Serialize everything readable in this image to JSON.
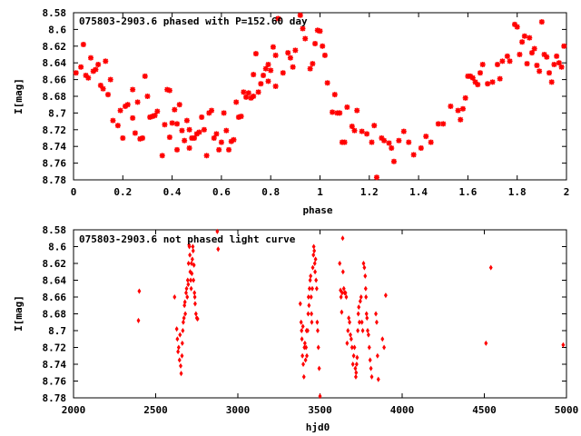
{
  "chart_data": [
    {
      "type": "scatter",
      "title": "075803-2903.6 phased with P=152.60 day",
      "xlabel": "phase",
      "ylabel": "I[mag]",
      "xlim": [
        0,
        2
      ],
      "ylim": [
        8.58,
        8.78
      ],
      "y_inverted": true,
      "grid": false,
      "xticks": [
        "0",
        "0.2",
        "0.4",
        "0.6",
        "0.8",
        "1",
        "1.2",
        "1.4",
        "1.6",
        "1.8",
        "2"
      ],
      "xtick_values": [
        0,
        0.2,
        0.4,
        0.6,
        0.8,
        1,
        1.2,
        1.4,
        1.6,
        1.8,
        2
      ],
      "yticks": [
        "8.58",
        "8.6",
        "8.62",
        "8.64",
        "8.66",
        "8.68",
        "8.7",
        "8.72",
        "8.74",
        "8.76",
        "8.78"
      ],
      "ytick_values": [
        8.58,
        8.6,
        8.62,
        8.64,
        8.66,
        8.68,
        8.7,
        8.72,
        8.74,
        8.76,
        8.78
      ],
      "marker": "star",
      "color": "#ff0000",
      "points": [
        [
          0.01,
          8.652
        ],
        [
          0.03,
          8.645
        ],
        [
          0.04,
          8.618
        ],
        [
          0.05,
          8.655
        ],
        [
          0.06,
          8.658
        ],
        [
          0.07,
          8.634
        ],
        [
          0.08,
          8.65
        ],
        [
          0.09,
          8.648
        ],
        [
          0.1,
          8.642
        ],
        [
          0.11,
          8.667
        ],
        [
          0.12,
          8.671
        ],
        [
          0.13,
          8.638
        ],
        [
          0.14,
          8.678
        ],
        [
          0.15,
          8.66
        ],
        [
          0.16,
          8.709
        ],
        [
          0.18,
          8.715
        ],
        [
          0.19,
          8.697
        ],
        [
          0.2,
          8.73
        ],
        [
          0.21,
          8.692
        ],
        [
          0.22,
          8.69
        ],
        [
          0.24,
          8.706
        ],
        [
          0.24,
          8.672
        ],
        [
          0.25,
          8.724
        ],
        [
          0.26,
          8.687
        ],
        [
          0.27,
          8.731
        ],
        [
          0.28,
          8.73
        ],
        [
          0.29,
          8.656
        ],
        [
          0.3,
          8.68
        ],
        [
          0.31,
          8.705
        ],
        [
          0.32,
          8.704
        ],
        [
          0.33,
          8.703
        ],
        [
          0.34,
          8.698
        ],
        [
          0.36,
          8.751
        ],
        [
          0.37,
          8.714
        ],
        [
          0.38,
          8.672
        ],
        [
          0.39,
          8.673
        ],
        [
          0.39,
          8.729
        ],
        [
          0.4,
          8.712
        ],
        [
          0.41,
          8.696
        ],
        [
          0.42,
          8.713
        ],
        [
          0.42,
          8.744
        ],
        [
          0.43,
          8.69
        ],
        [
          0.44,
          8.721
        ],
        [
          0.45,
          8.733
        ],
        [
          0.46,
          8.709
        ],
        [
          0.47,
          8.72
        ],
        [
          0.47,
          8.742
        ],
        [
          0.48,
          8.73
        ],
        [
          0.49,
          8.73
        ],
        [
          0.5,
          8.725
        ],
        [
          0.51,
          8.723
        ],
        [
          0.52,
          8.705
        ],
        [
          0.53,
          8.72
        ],
        [
          0.54,
          8.751
        ],
        [
          0.55,
          8.7
        ],
        [
          0.56,
          8.697
        ],
        [
          0.57,
          8.73
        ],
        [
          0.58,
          8.725
        ],
        [
          0.59,
          8.744
        ],
        [
          0.6,
          8.735
        ],
        [
          0.61,
          8.7
        ],
        [
          0.62,
          8.721
        ],
        [
          0.63,
          8.744
        ],
        [
          0.64,
          8.734
        ],
        [
          0.65,
          8.732
        ],
        [
          0.66,
          8.687
        ],
        [
          0.67,
          8.705
        ],
        [
          0.68,
          8.704
        ],
        [
          0.69,
          8.675
        ],
        [
          0.7,
          8.681
        ],
        [
          0.71,
          8.676
        ],
        [
          0.72,
          8.682
        ],
        [
          0.73,
          8.654
        ],
        [
          0.73,
          8.68
        ],
        [
          0.74,
          8.629
        ],
        [
          0.75,
          8.675
        ],
        [
          0.76,
          8.665
        ],
        [
          0.77,
          8.655
        ],
        [
          0.78,
          8.647
        ],
        [
          0.79,
          8.642
        ],
        [
          0.79,
          8.662
        ],
        [
          0.8,
          8.649
        ],
        [
          0.81,
          8.621
        ],
        [
          0.82,
          8.631
        ],
        [
          0.82,
          8.668
        ],
        [
          0.83,
          8.587
        ],
        [
          0.85,
          8.652
        ],
        [
          0.87,
          8.628
        ],
        [
          0.88,
          8.634
        ],
        [
          0.89,
          8.645
        ],
        [
          0.9,
          8.625
        ],
        [
          0.92,
          8.583
        ],
        [
          0.93,
          8.599
        ],
        [
          0.94,
          8.611
        ],
        [
          0.96,
          8.647
        ],
        [
          0.97,
          8.641
        ],
        [
          0.98,
          8.617
        ],
        [
          0.99,
          8.601
        ],
        [
          1.0,
          8.602
        ],
        [
          1.01,
          8.62
        ],
        [
          1.02,
          8.631
        ],
        [
          1.03,
          8.664
        ],
        [
          1.05,
          8.699
        ],
        [
          1.06,
          8.678
        ],
        [
          1.07,
          8.7
        ],
        [
          1.08,
          8.7
        ],
        [
          1.09,
          8.735
        ],
        [
          1.1,
          8.735
        ],
        [
          1.11,
          8.693
        ],
        [
          1.13,
          8.716
        ],
        [
          1.14,
          8.721
        ],
        [
          1.15,
          8.697
        ],
        [
          1.17,
          8.722
        ],
        [
          1.19,
          8.725
        ],
        [
          1.21,
          8.735
        ],
        [
          1.22,
          8.715
        ],
        [
          1.23,
          8.777
        ],
        [
          1.25,
          8.73
        ],
        [
          1.26,
          8.733
        ],
        [
          1.28,
          8.736
        ],
        [
          1.29,
          8.742
        ],
        [
          1.3,
          8.758
        ],
        [
          1.32,
          8.733
        ],
        [
          1.34,
          8.722
        ],
        [
          1.36,
          8.735
        ],
        [
          1.38,
          8.75
        ],
        [
          1.41,
          8.742
        ],
        [
          1.43,
          8.728
        ],
        [
          1.45,
          8.735
        ],
        [
          1.48,
          8.713
        ],
        [
          1.5,
          8.713
        ],
        [
          1.53,
          8.692
        ],
        [
          1.56,
          8.697
        ],
        [
          1.57,
          8.708
        ],
        [
          1.58,
          8.695
        ],
        [
          1.59,
          8.682
        ],
        [
          1.6,
          8.656
        ],
        [
          1.61,
          8.656
        ],
        [
          1.62,
          8.658
        ],
        [
          1.63,
          8.663
        ],
        [
          1.64,
          8.666
        ],
        [
          1.65,
          8.652
        ],
        [
          1.66,
          8.642
        ],
        [
          1.68,
          8.665
        ],
        [
          1.7,
          8.663
        ],
        [
          1.72,
          8.642
        ],
        [
          1.73,
          8.659
        ],
        [
          1.74,
          8.638
        ],
        [
          1.76,
          8.632
        ],
        [
          1.77,
          8.638
        ],
        [
          1.79,
          8.594
        ],
        [
          1.8,
          8.597
        ],
        [
          1.81,
          8.63
        ],
        [
          1.82,
          8.615
        ],
        [
          1.83,
          8.608
        ],
        [
          1.84,
          8.641
        ],
        [
          1.85,
          8.61
        ],
        [
          1.86,
          8.628
        ],
        [
          1.87,
          8.623
        ],
        [
          1.88,
          8.643
        ],
        [
          1.89,
          8.65
        ],
        [
          1.9,
          8.591
        ],
        [
          1.91,
          8.63
        ],
        [
          1.92,
          8.633
        ],
        [
          1.93,
          8.652
        ],
        [
          1.94,
          8.663
        ],
        [
          1.95,
          8.642
        ],
        [
          1.96,
          8.632
        ],
        [
          1.97,
          8.64
        ],
        [
          1.98,
          8.645
        ],
        [
          1.99,
          8.62
        ]
      ]
    },
    {
      "type": "scatter",
      "title": "075803-2903.6 not phased light curve",
      "xlabel": "hjd0",
      "ylabel": "I[mag]",
      "xlim": [
        2000,
        5000
      ],
      "ylim": [
        8.58,
        8.78
      ],
      "y_inverted": true,
      "grid": false,
      "xticks": [
        "2000",
        "2500",
        "3000",
        "3500",
        "4000",
        "4500",
        "5000"
      ],
      "xtick_values": [
        2000,
        2500,
        3000,
        3500,
        4000,
        4500,
        5000
      ],
      "yticks": [
        "8.58",
        "8.6",
        "8.62",
        "8.64",
        "8.66",
        "8.68",
        "8.7",
        "8.72",
        "8.74",
        "8.76",
        "8.78"
      ],
      "ytick_values": [
        8.58,
        8.6,
        8.62,
        8.64,
        8.66,
        8.68,
        8.7,
        8.72,
        8.74,
        8.76,
        8.78
      ],
      "marker": "diamond",
      "color": "#ff0000",
      "points": [
        [
          2395,
          8.688
        ],
        [
          2400,
          8.653
        ],
        [
          2615,
          8.66
        ],
        [
          2628,
          8.698
        ],
        [
          2632,
          8.71
        ],
        [
          2636,
          8.725
        ],
        [
          2640,
          8.72
        ],
        [
          2645,
          8.735
        ],
        [
          2648,
          8.705
        ],
        [
          2652,
          8.742
        ],
        [
          2655,
          8.751
        ],
        [
          2660,
          8.73
        ],
        [
          2662,
          8.715
        ],
        [
          2665,
          8.7
        ],
        [
          2668,
          8.69
        ],
        [
          2672,
          8.685
        ],
        [
          2675,
          8.67
        ],
        [
          2678,
          8.666
        ],
        [
          2680,
          8.68
        ],
        [
          2685,
          8.655
        ],
        [
          2688,
          8.65
        ],
        [
          2692,
          8.66
        ],
        [
          2695,
          8.64
        ],
        [
          2698,
          8.645
        ],
        [
          2700,
          8.62
        ],
        [
          2703,
          8.598
        ],
        [
          2705,
          8.6
        ],
        [
          2708,
          8.61
        ],
        [
          2710,
          8.63
        ],
        [
          2713,
          8.64
        ],
        [
          2716,
          8.65
        ],
        [
          2718,
          8.62
        ],
        [
          2720,
          8.632
        ],
        [
          2723,
          8.615
        ],
        [
          2726,
          8.6
        ],
        [
          2728,
          8.605
        ],
        [
          2730,
          8.64
        ],
        [
          2733,
          8.622
        ],
        [
          2736,
          8.655
        ],
        [
          2738,
          8.66
        ],
        [
          2740,
          8.668
        ],
        [
          2745,
          8.68
        ],
        [
          2750,
          8.685
        ],
        [
          2755,
          8.686
        ],
        [
          2875,
          8.582
        ],
        [
          2880,
          8.603
        ],
        [
          3380,
          8.668
        ],
        [
          3385,
          8.69
        ],
        [
          3388,
          8.7
        ],
        [
          3390,
          8.71
        ],
        [
          3393,
          8.73
        ],
        [
          3396,
          8.695
        ],
        [
          3398,
          8.74
        ],
        [
          3402,
          8.755
        ],
        [
          3405,
          8.72
        ],
        [
          3408,
          8.715
        ],
        [
          3412,
          8.735
        ],
        [
          3415,
          8.72
        ],
        [
          3418,
          8.7
        ],
        [
          3420,
          8.73
        ],
        [
          3425,
          8.7
        ],
        [
          3428,
          8.68
        ],
        [
          3430,
          8.66
        ],
        [
          3433,
          8.67
        ],
        [
          3436,
          8.65
        ],
        [
          3440,
          8.64
        ],
        [
          3443,
          8.635
        ],
        [
          3446,
          8.66
        ],
        [
          3448,
          8.68
        ],
        [
          3450,
          8.69
        ],
        [
          3453,
          8.65
        ],
        [
          3456,
          8.625
        ],
        [
          3460,
          8.61
        ],
        [
          3462,
          8.6
        ],
        [
          3465,
          8.605
        ],
        [
          3468,
          8.62
        ],
        [
          3470,
          8.63
        ],
        [
          3473,
          8.615
        ],
        [
          3476,
          8.64
        ],
        [
          3480,
          8.65
        ],
        [
          3483,
          8.69
        ],
        [
          3486,
          8.7
        ],
        [
          3490,
          8.72
        ],
        [
          3495,
          8.745
        ],
        [
          3500,
          8.778
        ],
        [
          3620,
          8.62
        ],
        [
          3625,
          8.652
        ],
        [
          3628,
          8.66
        ],
        [
          3632,
          8.678
        ],
        [
          3635,
          8.655
        ],
        [
          3638,
          8.59
        ],
        [
          3640,
          8.63
        ],
        [
          3645,
          8.65
        ],
        [
          3650,
          8.655
        ],
        [
          3655,
          8.655
        ],
        [
          3660,
          8.66
        ],
        [
          3665,
          8.715
        ],
        [
          3670,
          8.7
        ],
        [
          3675,
          8.685
        ],
        [
          3680,
          8.69
        ],
        [
          3685,
          8.705
        ],
        [
          3690,
          8.71
        ],
        [
          3695,
          8.72
        ],
        [
          3700,
          8.74
        ],
        [
          3705,
          8.73
        ],
        [
          3710,
          8.72
        ],
        [
          3715,
          8.745
        ],
        [
          3718,
          8.755
        ],
        [
          3720,
          8.75
        ],
        [
          3723,
          8.74
        ],
        [
          3726,
          8.732
        ],
        [
          3730,
          8.7
        ],
        [
          3733,
          8.68
        ],
        [
          3736,
          8.672
        ],
        [
          3740,
          8.69
        ],
        [
          3745,
          8.665
        ],
        [
          3750,
          8.66
        ],
        [
          3755,
          8.69
        ],
        [
          3760,
          8.7
        ],
        [
          3765,
          8.62
        ],
        [
          3770,
          8.625
        ],
        [
          3775,
          8.635
        ],
        [
          3778,
          8.65
        ],
        [
          3780,
          8.66
        ],
        [
          3783,
          8.68
        ],
        [
          3786,
          8.685
        ],
        [
          3790,
          8.7
        ],
        [
          3795,
          8.705
        ],
        [
          3800,
          8.72
        ],
        [
          3805,
          8.735
        ],
        [
          3810,
          8.745
        ],
        [
          3815,
          8.755
        ],
        [
          3840,
          8.68
        ],
        [
          3845,
          8.69
        ],
        [
          3850,
          8.73
        ],
        [
          3855,
          8.758
        ],
        [
          3880,
          8.71
        ],
        [
          3890,
          8.72
        ],
        [
          3900,
          8.658
        ],
        [
          4510,
          8.715
        ],
        [
          4540,
          8.625
        ],
        [
          4980,
          8.717
        ]
      ]
    }
  ]
}
